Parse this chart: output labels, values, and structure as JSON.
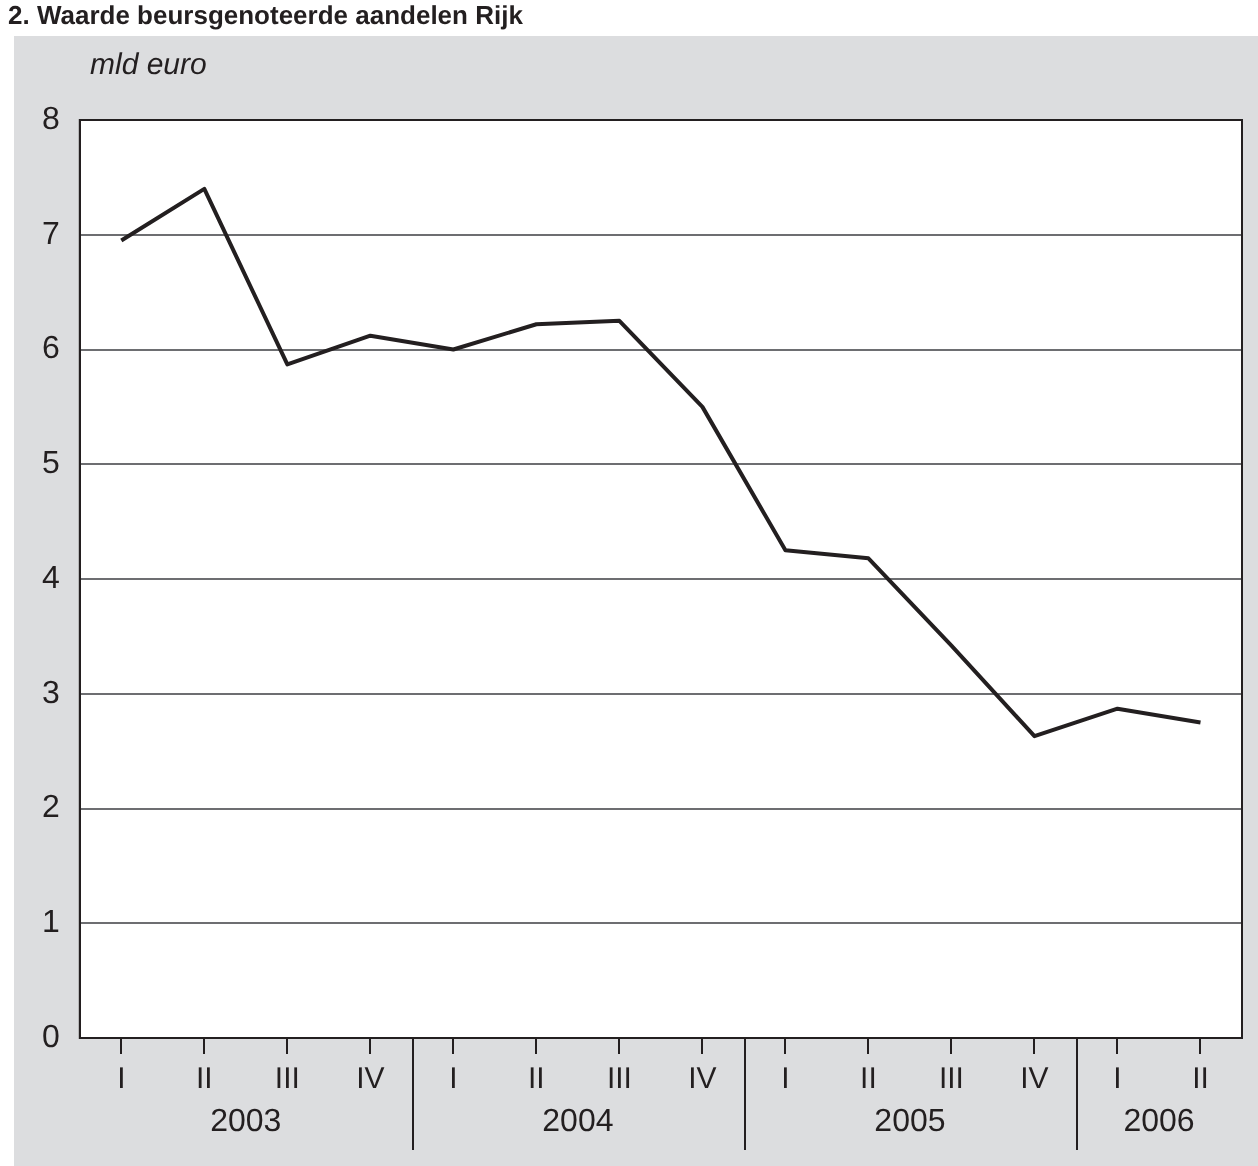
{
  "chart_data": {
    "type": "line",
    "title": "2. Waarde beursgenoteerde aandelen Rijk",
    "ylabel": "mld euro",
    "categories": [
      "I",
      "II",
      "III",
      "IV",
      "I",
      "II",
      "III",
      "IV",
      "I",
      "II",
      "III",
      "IV",
      "I",
      "II"
    ],
    "annotations": [
      "2003",
      "2004",
      "2005",
      "2006"
    ],
    "series": [
      {
        "color": "#231f20",
        "values": [
          6.95,
          7.4,
          5.87,
          6.12,
          6.0,
          6.22,
          6.25,
          5.5,
          4.25,
          4.18,
          3.42,
          2.63,
          2.87,
          2.75
        ]
      }
    ],
    "ylim": [
      0,
      8
    ],
    "yticks": [
      0,
      1,
      2,
      3,
      4,
      5,
      6,
      7,
      8
    ],
    "grid": "y",
    "legend": false,
    "marker": "none",
    "line_style": "solid"
  }
}
